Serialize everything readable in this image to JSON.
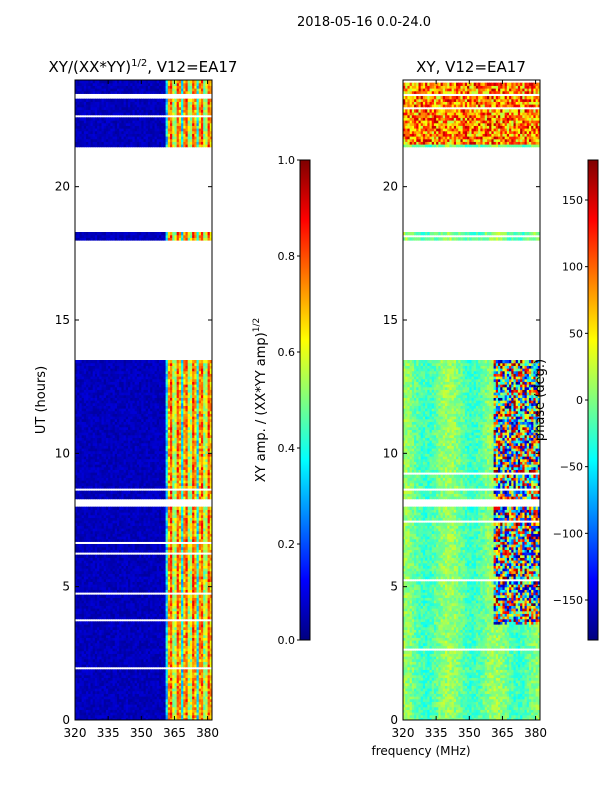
{
  "figure": {
    "suptitle": "2018-05-16 0.0-24.0",
    "xlabel": "frequency (MHz)"
  },
  "chart_data": [
    {
      "type": "heatmap",
      "title": "XY/(XX*YY)",
      "title_exponent": "1/2",
      "title_suffix": ", V12=EA17",
      "xlabel": "frequency (MHz)",
      "ylabel": "UT (hours)",
      "xlim": [
        320,
        382
      ],
      "ylim": [
        0,
        24
      ],
      "xticks": [
        320,
        335,
        350,
        365,
        380
      ],
      "yticks": [
        0,
        5,
        10,
        15,
        20
      ],
      "colormap": "jet",
      "colorbar": {
        "label": "XY amp. / (XX*YY amp)",
        "label_exponent": "1/2",
        "range": [
          0.0,
          1.0
        ],
        "ticks": [
          "0.0",
          "0.2",
          "0.4",
          "0.6",
          "0.8",
          "1.0"
        ]
      },
      "data_gaps_ut_hours": [
        [
          8.0,
          8.3
        ],
        [
          13.5,
          18.0
        ],
        [
          18.3,
          21.5
        ]
      ],
      "bright_band_mhz": [
        361,
        382
      ],
      "typical_values": {
        "below_361_mhz": 0.05,
        "above_361_mhz": 0.5
      }
    },
    {
      "type": "heatmap",
      "title": "XY, V12=EA17",
      "xlabel": "frequency (MHz)",
      "ylabel": "",
      "xlim": [
        320,
        382
      ],
      "ylim": [
        0,
        24
      ],
      "xticks": [
        320,
        335,
        350,
        365,
        380
      ],
      "yticks": [
        0,
        5,
        10,
        15,
        20
      ],
      "colormap": "jet",
      "colorbar": {
        "label": "phase (deg.)",
        "range": [
          -180,
          180
        ],
        "ticks": [
          "−150",
          "−100",
          "−50",
          "0",
          "50",
          "100",
          "150"
        ]
      },
      "data_gaps_ut_hours": [
        [
          8.0,
          8.3
        ],
        [
          13.5,
          18.0
        ],
        [
          18.3,
          21.5
        ]
      ],
      "typical_values": {
        "below_361_mhz": 20,
        "above_361_mhz": "noisy, ±180"
      }
    }
  ],
  "colors": {
    "ramp": [
      "#00007f",
      "#0000ff",
      "#007fff",
      "#00ffff",
      "#7fff7f",
      "#ffff00",
      "#ff7f00",
      "#ff0000",
      "#7f0000"
    ]
  }
}
